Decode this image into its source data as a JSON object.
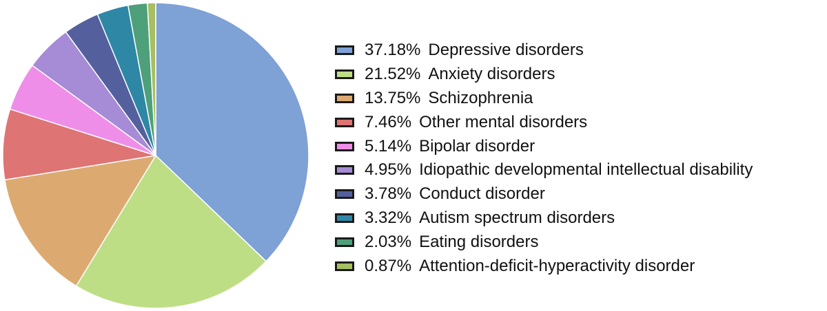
{
  "chart_data": {
    "type": "pie",
    "start_angle": "12 o'clock",
    "direction": "clockwise",
    "legend_position": "right",
    "slices": [
      {
        "percent_label": "37.18%",
        "label": "Depressive disorders",
        "value": 37.18,
        "color": "#7ea1d6"
      },
      {
        "percent_label": "21.52%",
        "label": "Anxiety disorders",
        "value": 21.52,
        "color": "#bede86"
      },
      {
        "percent_label": "13.75%",
        "label": "Schizophrenia",
        "value": 13.75,
        "color": "#dcaa70"
      },
      {
        "percent_label": "7.46%",
        "label": "Other mental disorders",
        "value": 7.46,
        "color": "#de7474"
      },
      {
        "percent_label": "5.14%",
        "label": "Bipolar disorder",
        "value": 5.14,
        "color": "#ee8ee8"
      },
      {
        "percent_label": "4.95%",
        "label": "Idiopathic developmental intellectual disability",
        "value": 4.95,
        "color": "#a68bd6"
      },
      {
        "percent_label": "3.78%",
        "label": "Conduct disorder",
        "value": 3.78,
        "color": "#54609e"
      },
      {
        "percent_label": "3.32%",
        "label": "Autism spectrum disorders",
        "value": 3.32,
        "color": "#2f87a6"
      },
      {
        "percent_label": "2.03%",
        "label": "Eating disorders",
        "value": 2.03,
        "color": "#4ea07a"
      },
      {
        "percent_label": "0.87%",
        "label": "Attention-deficit-hyperactivity disorder",
        "value": 0.87,
        "color": "#a7bf62"
      }
    ]
  }
}
